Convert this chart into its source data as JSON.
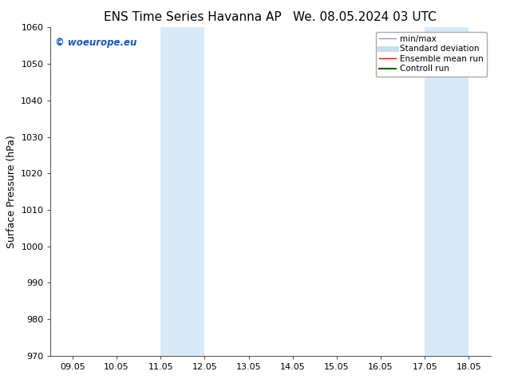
{
  "title_left": "ENS Time Series Havanna AP",
  "title_right": "We. 08.05.2024 03 UTC",
  "ylabel": "Surface Pressure (hPa)",
  "ylim": [
    970,
    1060
  ],
  "yticks": [
    970,
    980,
    990,
    1000,
    1010,
    1020,
    1030,
    1040,
    1050,
    1060
  ],
  "xtick_labels": [
    "09.05",
    "10.05",
    "11.05",
    "12.05",
    "13.05",
    "14.05",
    "15.05",
    "16.05",
    "17.05",
    "18.05"
  ],
  "xtick_positions": [
    0,
    1,
    2,
    3,
    4,
    5,
    6,
    7,
    8,
    9
  ],
  "shaded_regions": [
    {
      "xmin": 2.0,
      "xmax": 3.0,
      "color": "#d8eaf7"
    },
    {
      "xmin": 8.0,
      "xmax": 9.0,
      "color": "#d8eaf7"
    }
  ],
  "watermark_text": "© woeurope.eu",
  "watermark_color": "#1155cc",
  "background_color": "#ffffff",
  "legend_items": [
    {
      "label": "min/max",
      "color": "#999999",
      "lw": 1.0
    },
    {
      "label": "Standard deviation",
      "color": "#c8dcea",
      "lw": 5
    },
    {
      "label": "Ensemble mean run",
      "color": "#ff0000",
      "lw": 1.0
    },
    {
      "label": "Controll run",
      "color": "#006600",
      "lw": 1.5
    }
  ],
  "title_fontsize": 11,
  "ylabel_fontsize": 9,
  "tick_fontsize": 8,
  "legend_fontsize": 7.5,
  "watermark_fontsize": 8.5
}
